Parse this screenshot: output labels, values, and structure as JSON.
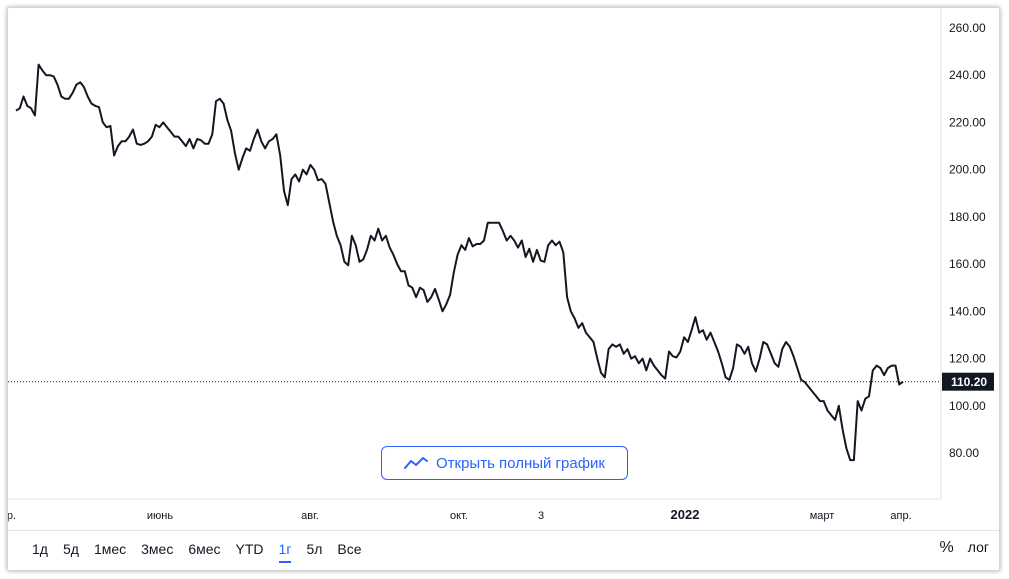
{
  "open_full_chart_label": "Открыть полный график",
  "periods": [
    "1д",
    "5д",
    "1мес",
    "3мес",
    "6мес",
    "YTD",
    "1г",
    "5л",
    "Все"
  ],
  "active_period": "1г",
  "right_tools": {
    "percent_label": "%",
    "log_label": "лог"
  },
  "colors": {
    "line": "#131722",
    "accent": "#2962ff",
    "price_tag_bg": "#131722",
    "price_tag_text": "#ffffff"
  },
  "chart_data": {
    "type": "line",
    "title": "",
    "xlabel": "",
    "ylabel": "",
    "ylim": [
      60,
      265
    ],
    "y_ticks": [
      "80.00",
      "100.00",
      "120.00",
      "140.00",
      "160.00",
      "180.00",
      "200.00",
      "220.00",
      "240.00",
      "260.00"
    ],
    "x_ticks": [
      "апр.",
      "июнь",
      "авг.",
      "окт.",
      "3",
      "2022",
      "март",
      "апр."
    ],
    "current_price": "110.20",
    "series": [
      {
        "values": [
          225,
          226,
          231,
          227,
          226,
          223,
          244.5,
          242,
          240,
          240,
          239.5,
          236,
          231,
          230,
          230,
          232.5,
          236,
          237,
          235,
          231,
          228,
          227,
          226.5,
          220,
          218,
          218.5,
          206,
          210,
          212,
          212,
          214,
          217,
          211,
          210.5,
          211,
          212,
          214,
          219,
          218,
          220,
          218,
          216,
          214,
          214,
          212,
          210,
          213,
          209,
          213,
          212.5,
          211,
          211,
          215,
          229,
          230,
          228,
          221,
          216.5,
          207,
          200,
          205,
          209,
          208,
          213,
          217,
          212,
          209,
          212,
          213,
          215,
          206,
          191,
          185,
          196,
          198,
          195,
          200,
          198,
          202,
          200,
          195.5,
          196,
          194,
          186,
          178,
          172,
          168,
          161,
          159.5,
          172,
          168,
          161,
          162,
          166,
          172,
          170,
          175,
          170,
          172,
          167,
          164,
          160,
          157,
          157,
          151,
          150,
          146,
          150,
          149,
          144,
          146,
          149.5,
          145,
          140,
          143,
          147,
          156.5,
          164,
          168,
          166,
          171,
          167.5,
          168.5,
          168.5,
          170,
          177.5,
          177.5,
          177.5,
          177.5,
          174,
          170,
          172,
          170,
          167,
          170,
          163,
          166.5,
          161,
          166,
          161.5,
          161,
          168,
          170,
          168,
          169.5,
          165,
          146,
          140,
          137,
          133,
          135,
          131,
          129,
          127,
          120,
          114,
          112,
          124,
          126,
          125,
          126,
          122,
          124,
          120,
          121,
          118,
          120,
          115,
          120,
          117,
          115,
          113,
          111.5,
          123,
          121,
          120.5,
          123,
          129,
          127,
          132,
          137.5,
          131,
          132,
          128,
          131,
          127,
          123,
          118,
          112,
          111,
          116,
          126,
          125,
          122,
          125,
          118,
          114.5,
          120,
          127,
          126,
          122,
          118,
          116.5,
          124,
          127,
          125,
          121,
          116,
          111,
          110,
          108,
          106,
          104,
          102,
          102,
          98,
          96,
          94,
          100,
          90,
          82,
          77,
          77,
          102,
          98,
          103,
          104,
          115,
          117,
          116,
          113,
          116,
          117,
          117,
          109,
          110.2
        ]
      }
    ]
  }
}
